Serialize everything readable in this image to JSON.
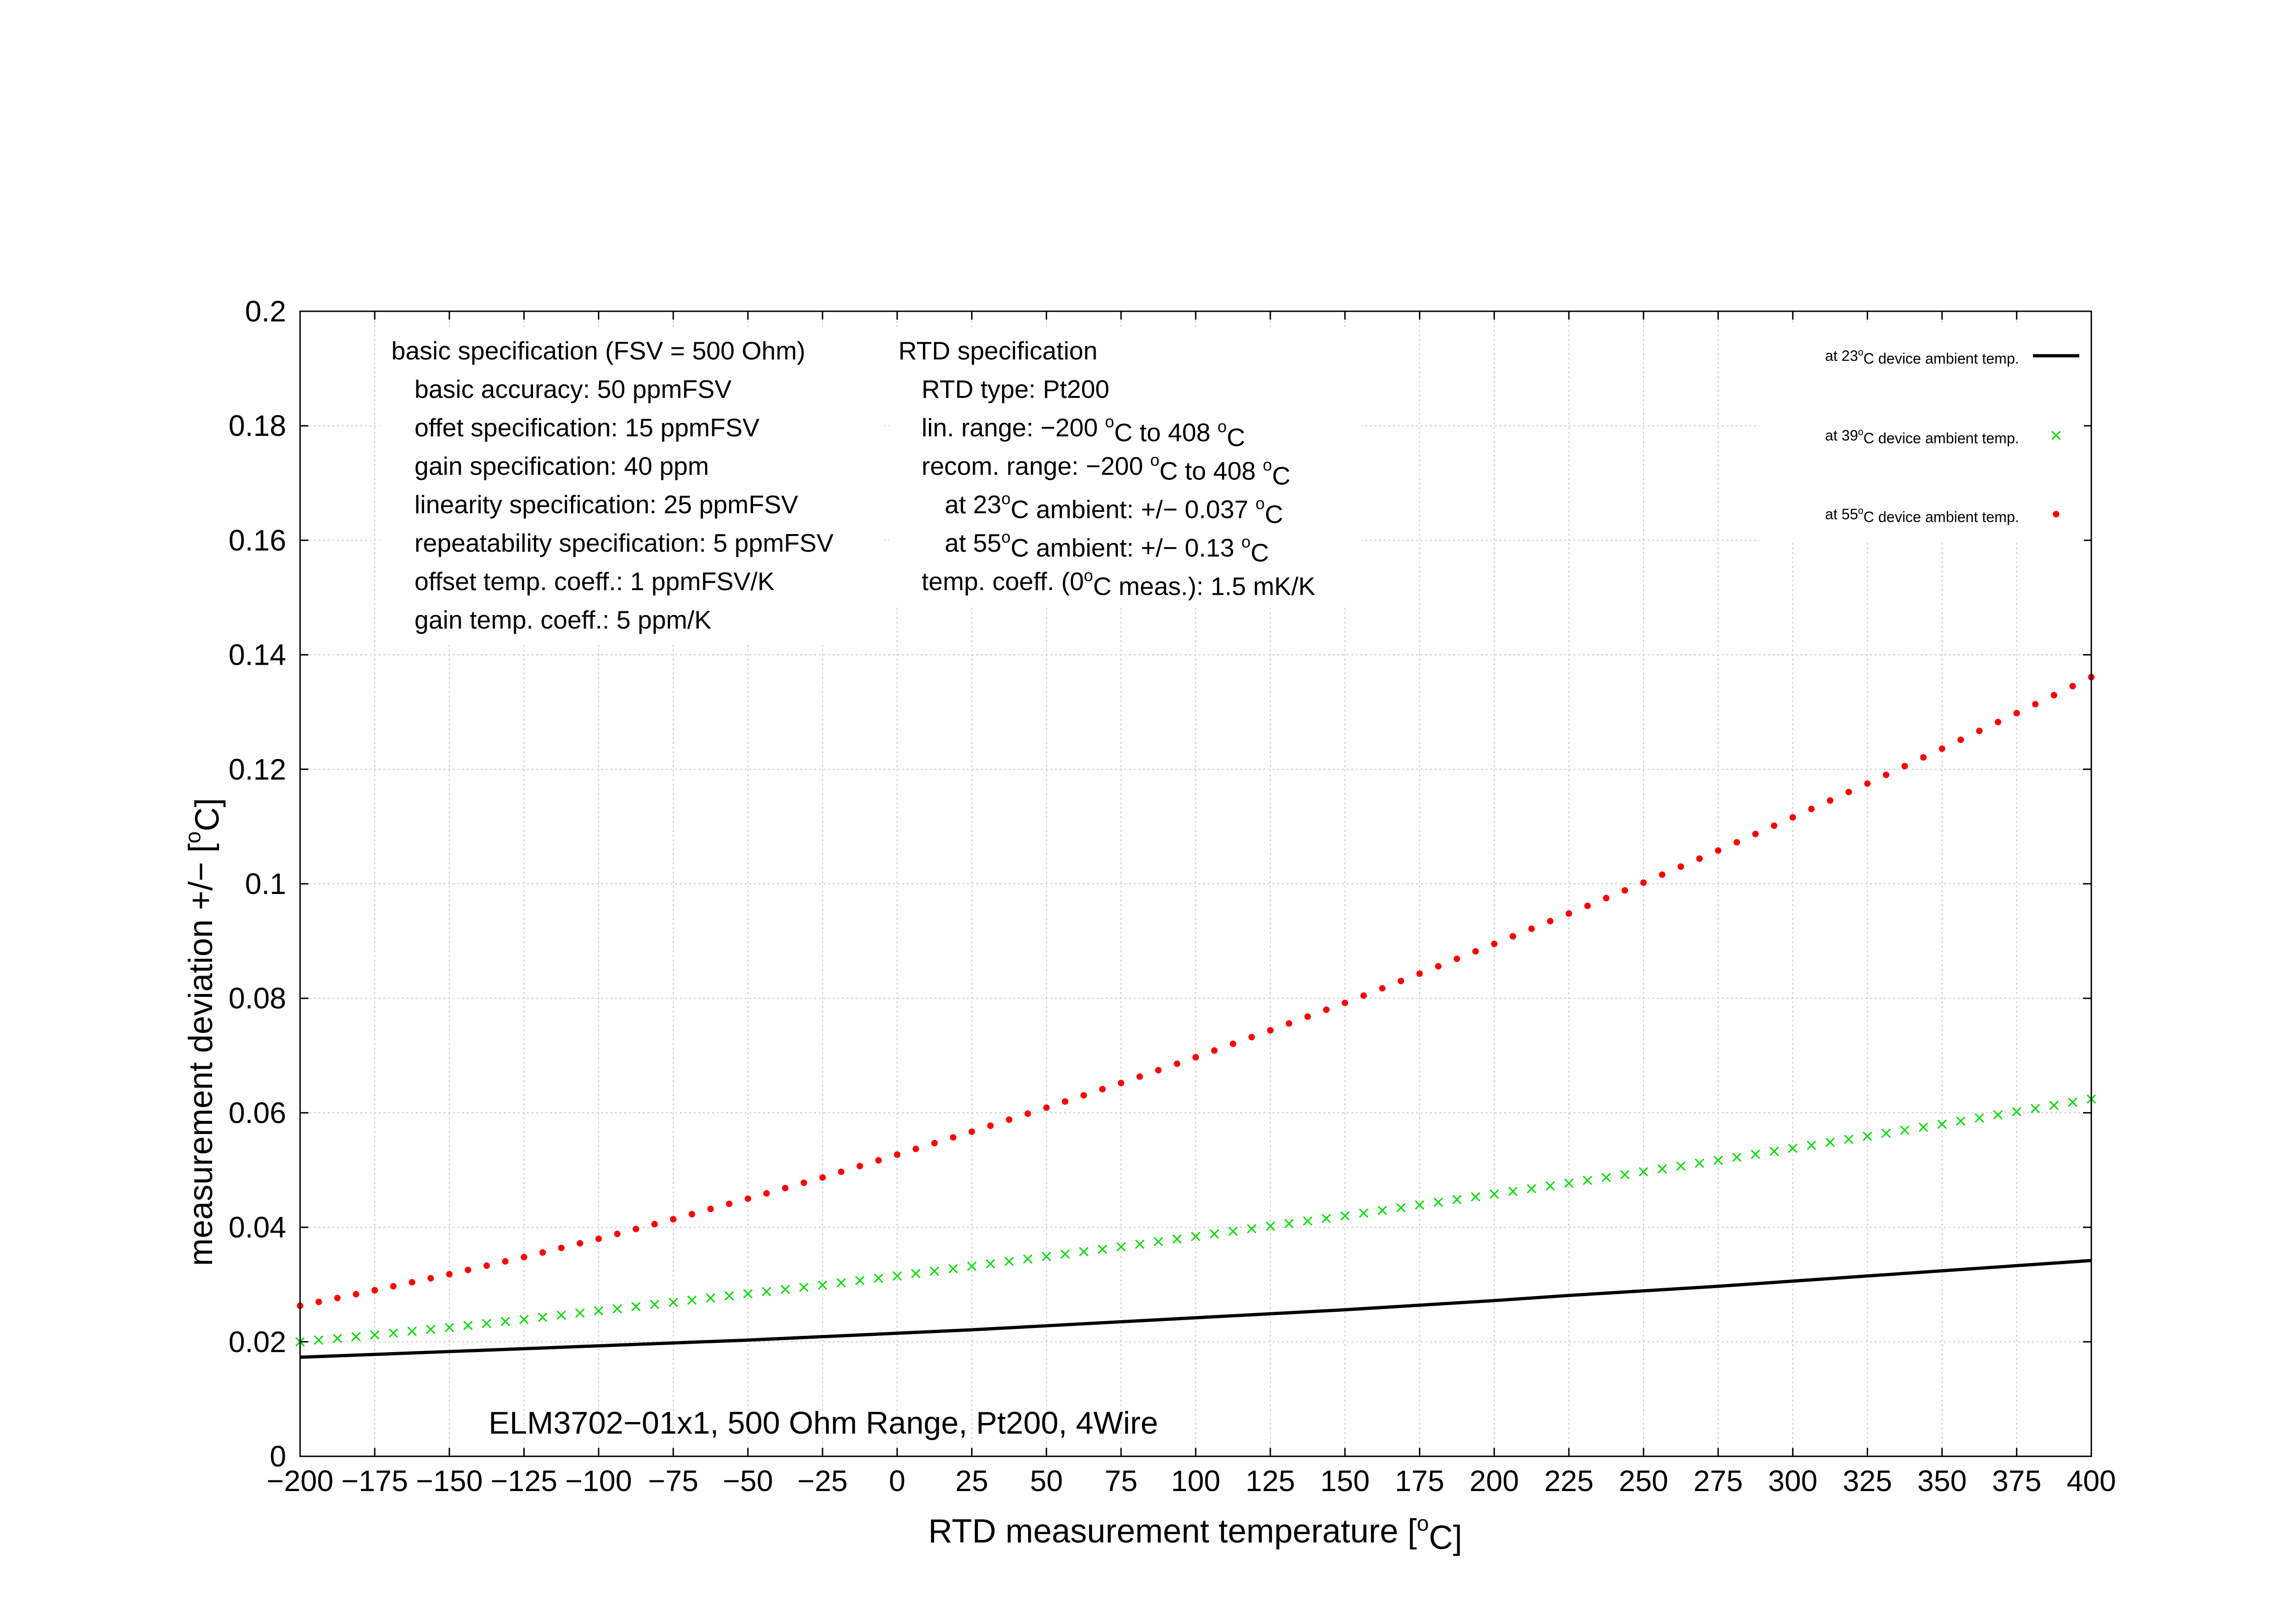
{
  "chart_data": {
    "type": "scatter",
    "xlabel": {
      "pre": "RTD measurement temperature [",
      "sup": "o",
      "post": "C]"
    },
    "ylabel": {
      "pre": "measurement deviation +/− [",
      "sup": "o",
      "post": "C]"
    },
    "xlim": [
      -200,
      400
    ],
    "ylim": [
      0,
      0.2
    ],
    "x_ticks": [
      -200,
      -175,
      -150,
      -125,
      -100,
      -75,
      -50,
      -25,
      0,
      25,
      50,
      75,
      100,
      125,
      150,
      175,
      200,
      225,
      250,
      275,
      300,
      325,
      350,
      375,
      400
    ],
    "x_tick_labels": [
      "−200",
      "−175",
      "−150",
      "−125",
      "−100",
      "−75",
      "−50",
      "−25",
      "0",
      "25",
      "50",
      "75",
      "100",
      "125",
      "150",
      "175",
      "200",
      "225",
      "250",
      "275",
      "300",
      "325",
      "350",
      "375",
      "400"
    ],
    "y_ticks": [
      0,
      0.02,
      0.04,
      0.06,
      0.08,
      0.1,
      0.12,
      0.14,
      0.16,
      0.18,
      0.2
    ],
    "y_tick_labels": [
      "0",
      "0.02",
      "0.04",
      "0.06",
      "0.08",
      "0.1",
      "0.12",
      "0.14",
      "0.16",
      "0.18",
      "0.2"
    ],
    "grid": true,
    "legend_position": "top-right",
    "x": [
      -200,
      -175,
      -150,
      -125,
      -100,
      -75,
      -50,
      -25,
      0,
      25,
      50,
      75,
      100,
      125,
      150,
      175,
      200,
      225,
      250,
      275,
      300,
      325,
      350,
      375,
      400
    ],
    "series": [
      {
        "legend": {
          "pre": "at 23",
          "sup": "o",
          "post": "C device ambient temp."
        },
        "style": "line",
        "color": "#000000",
        "values": [
          0.0173,
          0.0178,
          0.0183,
          0.0188,
          0.0193,
          0.0198,
          0.0203,
          0.0209,
          0.0215,
          0.0221,
          0.0228,
          0.0235,
          0.0242,
          0.0249,
          0.0256,
          0.0264,
          0.0272,
          0.0281,
          0.0289,
          0.0297,
          0.0306,
          0.0315,
          0.0324,
          0.0333,
          0.0342
        ]
      },
      {
        "legend": {
          "pre": "at 39",
          "sup": "o",
          "post": "C device ambient temp."
        },
        "style": "cross",
        "color": "#00dd00",
        "values": [
          0.02,
          0.0212,
          0.0225,
          0.0239,
          0.0254,
          0.0269,
          0.0284,
          0.0299,
          0.0315,
          0.0332,
          0.0349,
          0.0366,
          0.0384,
          0.0402,
          0.042,
          0.0439,
          0.0458,
          0.0477,
          0.0497,
          0.0517,
          0.0538,
          0.0559,
          0.058,
          0.0602,
          0.0624
        ]
      },
      {
        "legend": {
          "pre": "at 55",
          "sup": "o",
          "post": "C device ambient temp."
        },
        "style": "dot",
        "color": "#ff0000",
        "values": [
          0.0263,
          0.029,
          0.0318,
          0.0348,
          0.038,
          0.0414,
          0.045,
          0.0487,
          0.0527,
          0.0567,
          0.0609,
          0.0652,
          0.0697,
          0.0744,
          0.0792,
          0.0843,
          0.0895,
          0.0948,
          0.1002,
          0.1058,
          0.1116,
          0.1175,
          0.1236,
          0.1298,
          0.1361
        ]
      }
    ],
    "annotations": {
      "basic_spec": [
        "basic specification (FSV = 500 Ohm)",
        "basic accuracy: 50 ppmFSV",
        "offet specification: 15 ppmFSV",
        "gain specification: 40 ppm",
        "linearity specification: 25 ppmFSV",
        "repeatability specification: 5 ppmFSV",
        "offset temp. coeff.: 1 ppmFSV/K",
        "gain temp. coeff.: 5 ppm/K"
      ],
      "rtd_spec": [
        {
          "pre": "RTD specification",
          "sup": "",
          "mid": "",
          "sup2": "",
          "post": ""
        },
        {
          "pre": "RTD type: Pt200",
          "sup": "",
          "mid": "",
          "sup2": "",
          "post": ""
        },
        {
          "pre": "lin. range: −200 ",
          "sup": "o",
          "mid": "C to 408 ",
          "sup2": "o",
          "post": "C"
        },
        {
          "pre": "recom. range: −200 ",
          "sup": "o",
          "mid": "C to 408 ",
          "sup2": "o",
          "post": "C"
        },
        {
          "pre": "at 23",
          "sup": "o",
          "mid": "C ambient: +/− 0.037 ",
          "sup2": "o",
          "post": "C"
        },
        {
          "pre": "at 55",
          "sup": "o",
          "mid": "C ambient: +/− 0.13 ",
          "sup2": "o",
          "post": "C"
        },
        {
          "pre": "temp. coeff. (0",
          "sup": "o",
          "mid": "C meas.): 1.5 mK/K",
          "sup2": "",
          "post": ""
        }
      ],
      "caption": "ELM3702−01x1, 500 Ohm Range, Pt200, 4Wire"
    }
  }
}
